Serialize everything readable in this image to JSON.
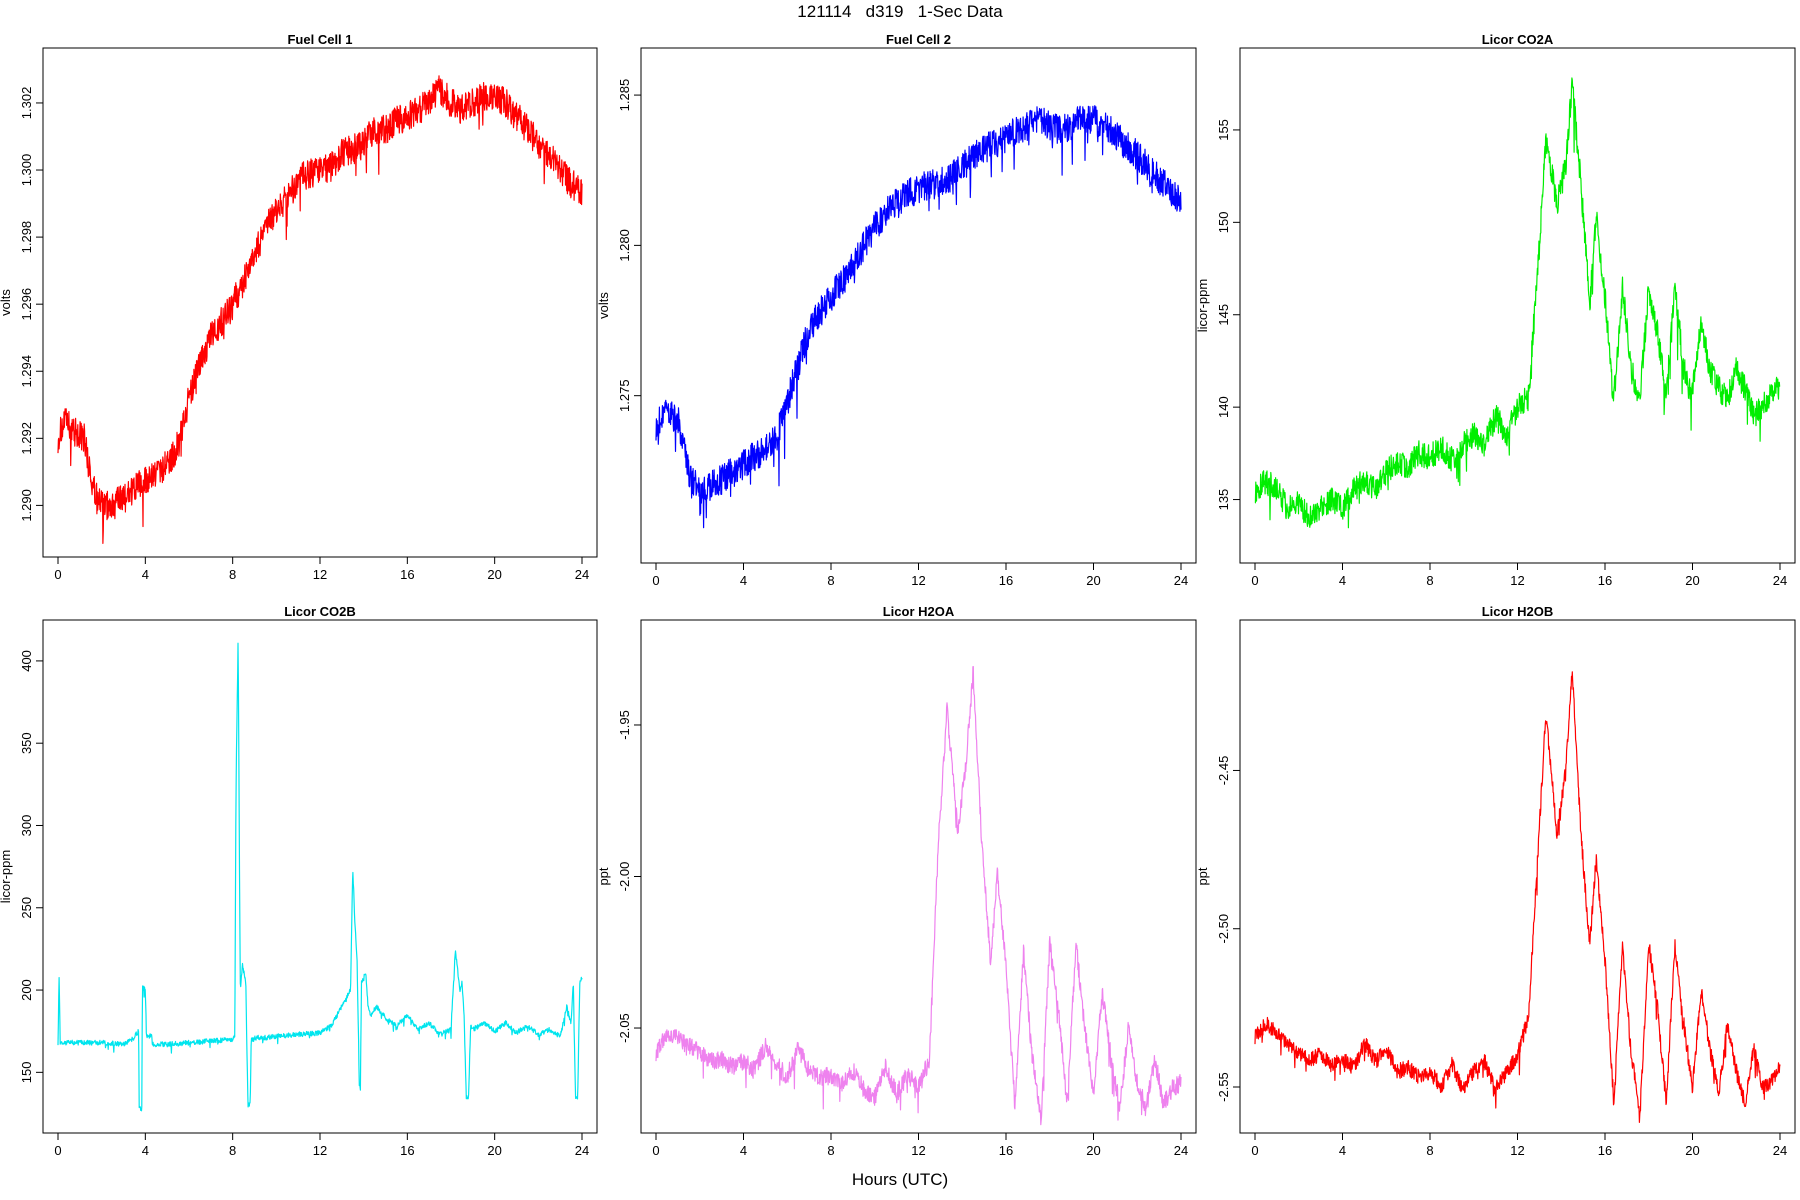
{
  "title": "121114   d319   1-Sec Data",
  "xlabel": "Hours (UTC)",
  "chart_data": [
    {
      "type": "line",
      "title": "Fuel Cell 1",
      "ylabel": "volts",
      "color": "#ff0000",
      "xlim": [
        0,
        24
      ],
      "ylim": [
        1.2887,
        1.3034
      ],
      "xticks": [
        0,
        4,
        8,
        12,
        16,
        20,
        24
      ],
      "yticks": [
        1.29,
        1.292,
        1.294,
        1.296,
        1.298,
        1.3,
        1.302
      ],
      "ytick_labels": [
        "1.290",
        "1.292",
        "1.294",
        "1.296",
        "1.298",
        "1.300",
        "1.302"
      ],
      "x": [
        0,
        0.3,
        0.8,
        1.2,
        1.6,
        2.0,
        2.5,
        3.0,
        3.5,
        4.0,
        4.5,
        5.0,
        5.5,
        6.0,
        6.5,
        7.0,
        7.5,
        8.0,
        8.5,
        9.0,
        9.5,
        10.0,
        10.5,
        11.0,
        11.5,
        12.0,
        12.5,
        13.0,
        13.5,
        14.0,
        14.5,
        15.0,
        15.5,
        16.0,
        16.5,
        17.0,
        17.5,
        18.0,
        18.5,
        19.0,
        19.5,
        20.0,
        20.5,
        21.0,
        21.5,
        22.0,
        22.5,
        23.0,
        23.5,
        24.0
      ],
      "y": [
        1.292,
        1.2925,
        1.2922,
        1.292,
        1.2905,
        1.29,
        1.29,
        1.2902,
        1.2905,
        1.2907,
        1.291,
        1.2912,
        1.2918,
        1.2932,
        1.2942,
        1.295,
        1.2955,
        1.296,
        1.2967,
        1.2975,
        1.2982,
        1.2988,
        1.2992,
        1.2997,
        1.2999,
        1.3,
        1.3001,
        1.3005,
        1.3006,
        1.3008,
        1.3012,
        1.3012,
        1.3015,
        1.3016,
        1.3018,
        1.302,
        1.3024,
        1.302,
        1.3018,
        1.302,
        1.3022,
        1.3022,
        1.302,
        1.3016,
        1.3012,
        1.3008,
        1.3004,
        1.3,
        1.2996,
        1.2993
      ],
      "noise": 0.00045
    },
    {
      "type": "line",
      "title": "Fuel Cell 2",
      "ylabel": "volts",
      "color": "#0000ff",
      "xlim": [
        0,
        24
      ],
      "ylim": [
        1.2697,
        1.2863
      ],
      "xticks": [
        0,
        4,
        8,
        12,
        16,
        20,
        24
      ],
      "yticks": [
        1.275,
        1.28,
        1.285
      ],
      "ytick_labels": [
        "1.275",
        "1.280",
        "1.285"
      ],
      "x": [
        0,
        0.5,
        1.0,
        1.5,
        2.0,
        2.5,
        3.0,
        3.5,
        4.0,
        4.5,
        5.0,
        5.5,
        6.0,
        6.5,
        7.0,
        7.5,
        8.0,
        8.5,
        9.0,
        9.5,
        10.0,
        10.5,
        11.0,
        11.5,
        12.0,
        12.5,
        13.0,
        13.5,
        14.0,
        14.5,
        15.0,
        15.5,
        16.0,
        16.5,
        17.0,
        17.5,
        18.0,
        18.5,
        19.0,
        19.5,
        20.0,
        20.5,
        21.0,
        21.5,
        22.0,
        22.5,
        23.0,
        23.5,
        24.0
      ],
      "y": [
        1.274,
        1.2745,
        1.2742,
        1.2725,
        1.2717,
        1.272,
        1.2722,
        1.2725,
        1.2727,
        1.273,
        1.2732,
        1.2736,
        1.2748,
        1.276,
        1.2772,
        1.2778,
        1.2783,
        1.2788,
        1.2793,
        1.28,
        1.2806,
        1.2811,
        1.2814,
        1.2817,
        1.2819,
        1.282,
        1.2821,
        1.2823,
        1.2826,
        1.283,
        1.2832,
        1.2834,
        1.2836,
        1.2838,
        1.284,
        1.2843,
        1.284,
        1.2838,
        1.284,
        1.2842,
        1.2842,
        1.284,
        1.2837,
        1.2833,
        1.283,
        1.2826,
        1.2822,
        1.2818,
        1.2815
      ],
      "noise": 0.0005
    },
    {
      "type": "line",
      "title": "Licor CO2A",
      "ylabel": "licor-ppm",
      "color": "#00ee00",
      "xlim": [
        0,
        24
      ],
      "ylim": [
        132,
        159
      ],
      "xticks": [
        0,
        4,
        8,
        12,
        16,
        20,
        24
      ],
      "yticks": [
        135,
        140,
        145,
        150,
        155
      ],
      "ytick_labels": [
        "135",
        "140",
        "145",
        "150",
        "155"
      ],
      "x": [
        0,
        0.5,
        1.0,
        1.5,
        2.0,
        2.5,
        3.0,
        3.5,
        4.0,
        4.5,
        5.0,
        5.5,
        6.0,
        6.5,
        7.0,
        7.5,
        8.0,
        8.5,
        9.0,
        9.5,
        10.0,
        10.5,
        11.0,
        11.5,
        12.0,
        12.5,
        12.9,
        13.3,
        13.8,
        14.2,
        14.5,
        14.9,
        15.3,
        15.6,
        16.0,
        16.4,
        16.8,
        17.2,
        17.6,
        18.0,
        18.4,
        18.8,
        19.2,
        19.6,
        20.0,
        20.4,
        20.8,
        21.2,
        21.6,
        22.0,
        22.4,
        22.8,
        23.2,
        23.6,
        24.0
      ],
      "y": [
        135.5,
        136.0,
        135.5,
        134.5,
        134.8,
        134.0,
        134.5,
        135.0,
        134.5,
        135.5,
        136.0,
        135.5,
        136.5,
        137.0,
        136.8,
        137.5,
        137.3,
        137.8,
        137.2,
        138.0,
        138.5,
        138.0,
        139.5,
        138.5,
        140.0,
        140.5,
        147.0,
        154.5,
        151.0,
        153.0,
        157.5,
        152.0,
        145.5,
        150.5,
        146.0,
        140.5,
        146.5,
        142.0,
        140.5,
        146.5,
        144.0,
        140.5,
        146.5,
        142.0,
        140.8,
        144.5,
        142.0,
        141.0,
        140.5,
        142.0,
        141.0,
        139.5,
        140.0,
        140.8,
        141.0
      ],
      "noise": 0.7
    },
    {
      "type": "line",
      "title": "Licor CO2B",
      "ylabel": "licor-ppm",
      "color": "#00e5ee",
      "xlim": [
        0,
        24
      ],
      "ylim": [
        118,
        420
      ],
      "xticks": [
        0,
        4,
        8,
        12,
        16,
        20,
        24
      ],
      "yticks": [
        150,
        200,
        250,
        300,
        350,
        400
      ],
      "ytick_labels": [
        "150",
        "200",
        "250",
        "300",
        "350",
        "400"
      ],
      "x": [
        0,
        0.05,
        0.1,
        1.0,
        2.0,
        3.0,
        3.4,
        3.7,
        3.71,
        3.85,
        3.86,
        4.0,
        4.05,
        4.3,
        4.31,
        5.0,
        6.0,
        7.0,
        8.0,
        8.1,
        8.15,
        8.25,
        8.3,
        8.35,
        8.45,
        8.6,
        8.7,
        8.8,
        8.85,
        8.95,
        9.0,
        9.5,
        10.0,
        11.0,
        12.0,
        12.5,
        13.0,
        13.4,
        13.5,
        13.6,
        13.7,
        13.8,
        13.85,
        13.9,
        14.1,
        14.2,
        14.3,
        14.6,
        15.0,
        15.5,
        16.0,
        16.5,
        17.0,
        17.5,
        18.0,
        18.2,
        18.4,
        18.5,
        18.6,
        18.7,
        18.8,
        18.9,
        19.0,
        19.5,
        20.0,
        20.5,
        21.0,
        21.5,
        22.0,
        22.5,
        23.0,
        23.3,
        23.5,
        23.6,
        23.7,
        23.8,
        23.9,
        24.0
      ],
      "y": [
        168,
        208,
        168,
        168,
        168,
        167,
        170,
        175,
        128,
        128,
        201,
        201,
        172,
        172,
        167,
        167,
        168,
        169,
        170,
        172,
        320,
        415,
        300,
        200,
        215,
        205,
        130,
        130,
        170,
        170,
        171,
        171,
        172,
        173,
        174,
        178,
        190,
        200,
        275,
        240,
        218,
        142,
        142,
        205,
        210,
        190,
        185,
        190,
        183,
        178,
        185,
        176,
        180,
        173,
        176,
        225,
        200,
        205,
        185,
        135,
        135,
        178,
        176,
        180,
        175,
        180,
        174,
        178,
        173,
        176,
        172,
        190,
        180,
        205,
        135,
        135,
        205,
        208
      ],
      "noise": 1.5
    },
    {
      "type": "line",
      "title": "Licor H2OA",
      "ylabel": "ppt",
      "color": "#ee82ee",
      "xlim": [
        0,
        24
      ],
      "ylim": [
        -2.082,
        -1.918
      ],
      "xticks": [
        0,
        4,
        8,
        12,
        16,
        20,
        24
      ],
      "yticks": [
        -2.05,
        -2.0,
        -1.95
      ],
      "ytick_labels": [
        "-2.05",
        "-2.00",
        "-1.95"
      ],
      "x": [
        0,
        0.5,
        1.0,
        1.5,
        2.0,
        2.5,
        3.0,
        3.5,
        4.0,
        4.5,
        5.0,
        5.5,
        6.0,
        6.5,
        7.0,
        7.5,
        8.0,
        8.5,
        9.0,
        9.5,
        10.0,
        10.5,
        11.0,
        11.5,
        12.0,
        12.5,
        12.9,
        13.3,
        13.8,
        14.2,
        14.5,
        14.9,
        15.3,
        15.6,
        16.0,
        16.4,
        16.8,
        17.2,
        17.6,
        18.0,
        18.4,
        18.8,
        19.2,
        19.6,
        20.0,
        20.4,
        20.8,
        21.2,
        21.6,
        22.0,
        22.4,
        22.8,
        23.2,
        23.6,
        24.0
      ],
      "y": [
        -2.058,
        -2.052,
        -2.053,
        -2.056,
        -2.058,
        -2.061,
        -2.06,
        -2.063,
        -2.061,
        -2.064,
        -2.056,
        -2.062,
        -2.066,
        -2.057,
        -2.064,
        -2.066,
        -2.066,
        -2.069,
        -2.064,
        -2.07,
        -2.073,
        -2.063,
        -2.072,
        -2.065,
        -2.07,
        -2.06,
        -1.99,
        -1.945,
        -1.985,
        -1.96,
        -1.932,
        -1.99,
        -2.028,
        -1.998,
        -2.03,
        -2.075,
        -2.025,
        -2.06,
        -2.08,
        -2.022,
        -2.045,
        -2.075,
        -2.022,
        -2.05,
        -2.072,
        -2.038,
        -2.06,
        -2.076,
        -2.05,
        -2.068,
        -2.077,
        -2.06,
        -2.075,
        -2.07,
        -2.068
      ],
      "noise": 0.003
    },
    {
      "type": "line",
      "title": "Licor H2OB",
      "ylabel": "ppt",
      "color": "#ff0000",
      "xlim": [
        0,
        24
      ],
      "ylim": [
        -2.562,
        -2.405
      ],
      "xticks": [
        0,
        4,
        8,
        12,
        16,
        20,
        24
      ],
      "yticks": [
        -2.55,
        -2.5,
        -2.45
      ],
      "ytick_labels": [
        "-2.55",
        "-2.50",
        "-2.45"
      ],
      "x": [
        0,
        0.5,
        1.0,
        1.5,
        2.0,
        2.5,
        3.0,
        3.5,
        4.0,
        4.5,
        5.0,
        5.5,
        6.0,
        6.5,
        7.0,
        7.5,
        8.0,
        8.5,
        9.0,
        9.5,
        10.0,
        10.5,
        11.0,
        11.5,
        12.0,
        12.5,
        12.9,
        13.3,
        13.8,
        14.2,
        14.5,
        14.9,
        15.3,
        15.6,
        16.0,
        16.4,
        16.8,
        17.2,
        17.6,
        18.0,
        18.4,
        18.8,
        19.2,
        19.6,
        20.0,
        20.4,
        20.8,
        21.2,
        21.6,
        22.0,
        22.4,
        22.8,
        23.2,
        23.6,
        24.0
      ],
      "y": [
        -2.534,
        -2.53,
        -2.533,
        -2.536,
        -2.539,
        -2.541,
        -2.54,
        -2.543,
        -2.541,
        -2.544,
        -2.536,
        -2.542,
        -2.538,
        -2.545,
        -2.544,
        -2.547,
        -2.545,
        -2.55,
        -2.543,
        -2.551,
        -2.545,
        -2.542,
        -2.551,
        -2.545,
        -2.54,
        -2.528,
        -2.48,
        -2.432,
        -2.47,
        -2.45,
        -2.418,
        -2.47,
        -2.505,
        -2.478,
        -2.51,
        -2.555,
        -2.505,
        -2.54,
        -2.558,
        -2.505,
        -2.525,
        -2.555,
        -2.505,
        -2.53,
        -2.55,
        -2.52,
        -2.538,
        -2.552,
        -2.53,
        -2.545,
        -2.555,
        -2.538,
        -2.55,
        -2.548,
        -2.544
      ],
      "noise": 0.0025
    }
  ]
}
